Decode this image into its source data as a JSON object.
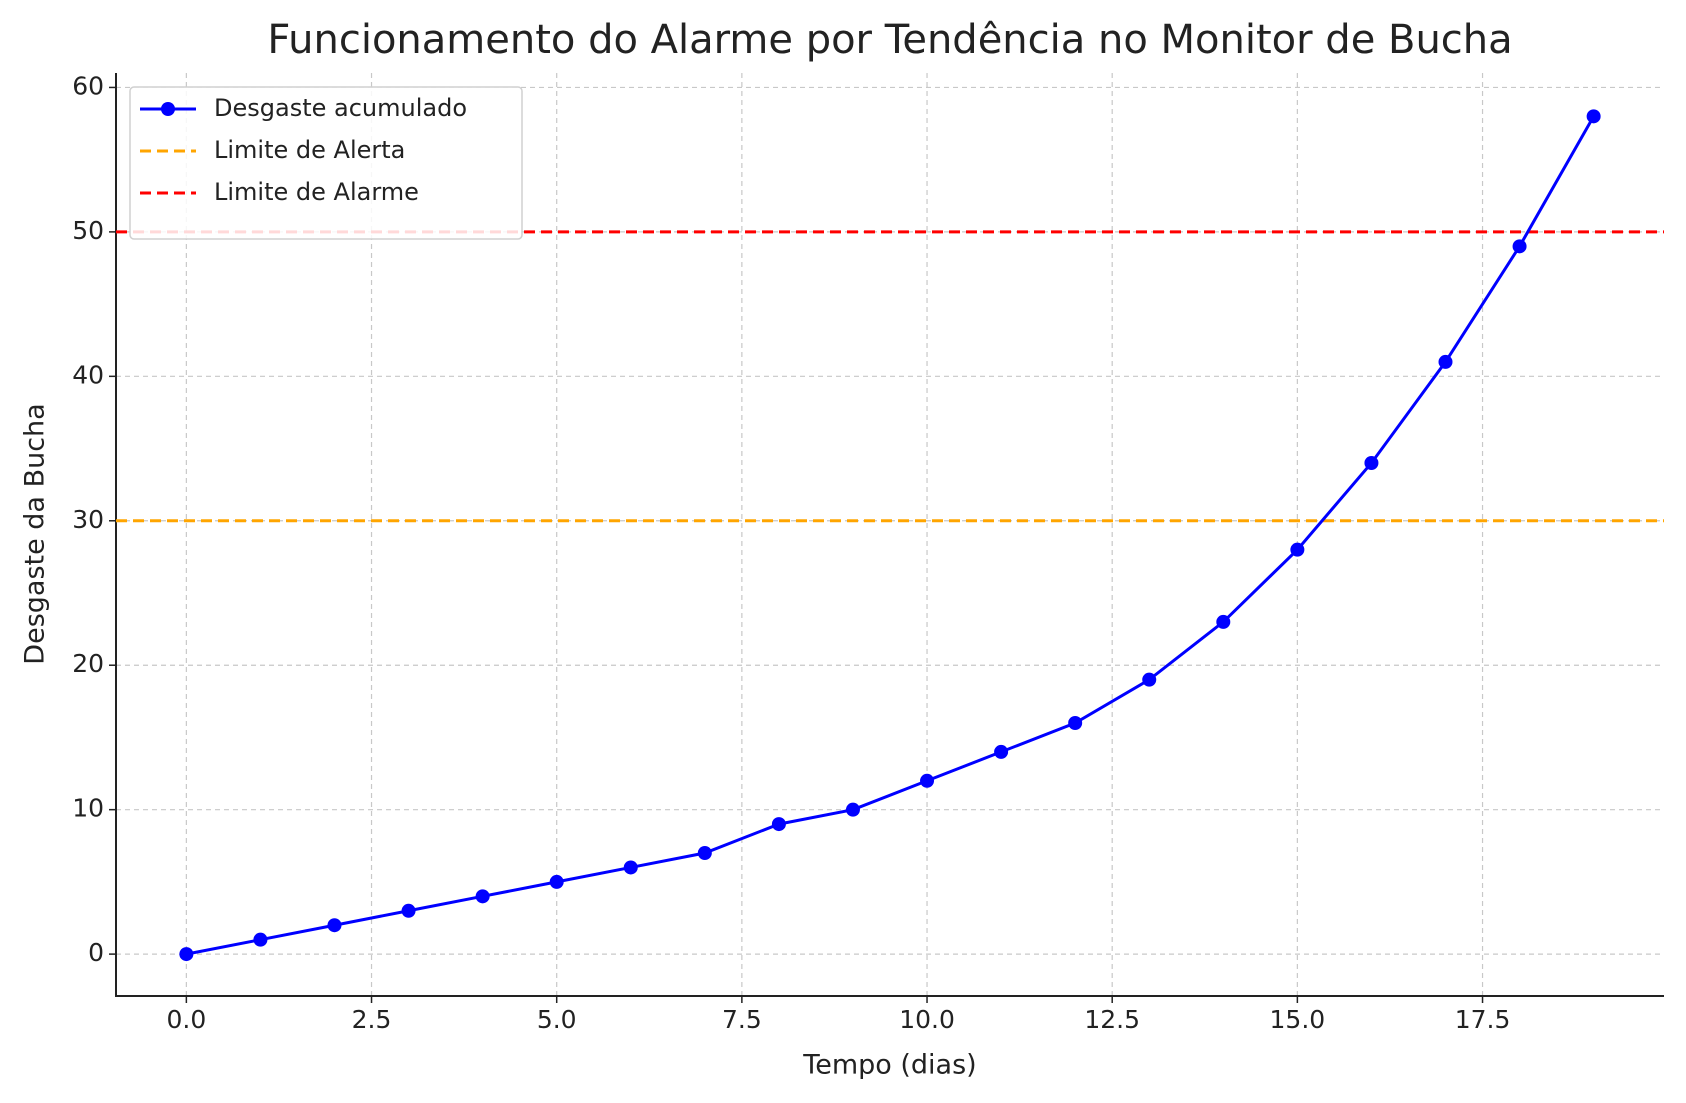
{
  "chart_data": {
    "type": "line",
    "title": "Funcionamento do Alarme por Tendência no Monitor de Bucha",
    "xlabel": "Tempo (dias)",
    "ylabel": "Desgaste da Bucha",
    "x": [
      0,
      1,
      2,
      3,
      4,
      5,
      6,
      7,
      8,
      9,
      10,
      11,
      12,
      13,
      14,
      15,
      16,
      17,
      18,
      19
    ],
    "series": [
      {
        "name": "Desgaste acumulado",
        "color": "#0000ff",
        "values": [
          0,
          1,
          2,
          3,
          4,
          5,
          6,
          7,
          9,
          10,
          12,
          14,
          16,
          19,
          23,
          28,
          34,
          41,
          49,
          58
        ]
      }
    ],
    "reference_lines": [
      {
        "name": "Limite de Alerta",
        "value": 30,
        "color": "#ffa500"
      },
      {
        "name": "Limite de Alarme",
        "value": 50,
        "color": "#ff0000"
      }
    ],
    "xlim": [
      -0.95,
      19.95
    ],
    "ylim": [
      -2.9,
      61
    ],
    "xticks": [
      {
        "value": 0,
        "label": "0.0"
      },
      2.5,
      {
        "value": 5,
        "label": "5.0"
      },
      7.5,
      {
        "value": 10,
        "label": "10.0"
      },
      12.5,
      {
        "value": 15,
        "label": "15.0"
      },
      17.5
    ],
    "yticks": [
      0,
      10,
      20,
      30,
      40,
      50,
      60
    ],
    "grid": true,
    "legend": "upper left"
  }
}
